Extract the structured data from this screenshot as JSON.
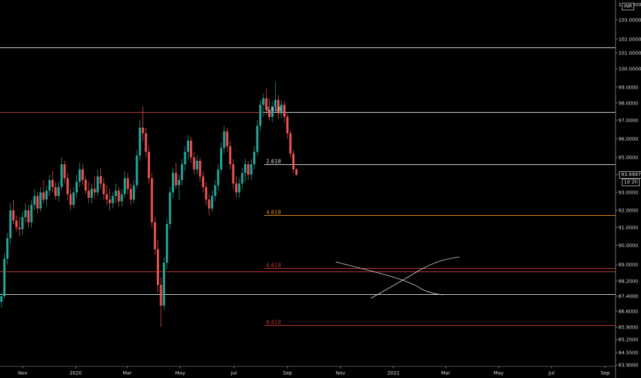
{
  "chart_data": {
    "type": "candlestick",
    "currency_badge": "INR",
    "last_price_label": "93.9997",
    "countdown_label": "1d 2h",
    "colors": {
      "up": "#26a69a",
      "down": "#ef5350",
      "white_line": "#d9d9d9",
      "red_line": "#c0392b",
      "orange_line": "#e08e0b"
    },
    "y_ticks": [
      "103.0000",
      "102.0000",
      "101.0000",
      "100.0000",
      "99.0000",
      "98.0000",
      "97.0000",
      "96.0000",
      "95.0000",
      "94.0000",
      "93.0000",
      "92.0000",
      "91.0000",
      "90.0000",
      "89.0000",
      "88.2000",
      "87.4000",
      "86.6000",
      "85.9000",
      "85.2000",
      "84.5500",
      "83.9000"
    ],
    "y_tick_top_partial": "104.0000",
    "x_ticks": [
      "Nov",
      "2020",
      "Mar",
      "May",
      "Jul",
      "Sep",
      "Nov",
      "2021",
      "Mar",
      "May",
      "Jul",
      "Sep"
    ],
    "levels": [
      {
        "name": "level-101-4",
        "price": 101.4,
        "color": "white",
        "label": ""
      },
      {
        "name": "level-97-5-red",
        "price": 97.5,
        "color": "red",
        "label": ""
      },
      {
        "name": "level-97-5-white",
        "price": 97.5,
        "color": "white",
        "label": "0.618"
      },
      {
        "name": "level-94-6",
        "price": 94.6,
        "color": "white",
        "label": "2.618"
      },
      {
        "name": "level-91-7",
        "price": 91.7,
        "color": "orange",
        "label": "4.618"
      },
      {
        "name": "level-88-85",
        "price": 88.85,
        "color": "red",
        "label": "6.618"
      },
      {
        "name": "level-88-65",
        "price": 88.65,
        "color": "red",
        "label": ""
      },
      {
        "name": "level-87-5",
        "price": 87.5,
        "color": "white",
        "label": ""
      },
      {
        "name": "level-86-0",
        "price": 86.0,
        "color": "red",
        "label": "8.618"
      }
    ],
    "candles": [
      {
        "o": 87.1,
        "h": 87.6,
        "l": 86.8,
        "c": 87.4
      },
      {
        "o": 87.4,
        "h": 89.6,
        "l": 87.3,
        "c": 89.3
      },
      {
        "o": 89.3,
        "h": 90.7,
        "l": 89.0,
        "c": 90.4
      },
      {
        "o": 90.4,
        "h": 92.4,
        "l": 90.1,
        "c": 92.0
      },
      {
        "o": 92.0,
        "h": 92.6,
        "l": 91.2,
        "c": 91.4
      },
      {
        "o": 91.4,
        "h": 91.7,
        "l": 90.8,
        "c": 91.0
      },
      {
        "o": 91.0,
        "h": 91.6,
        "l": 90.5,
        "c": 90.9
      },
      {
        "o": 90.9,
        "h": 91.9,
        "l": 90.6,
        "c": 91.6
      },
      {
        "o": 91.6,
        "h": 92.4,
        "l": 91.3,
        "c": 92.0
      },
      {
        "o": 92.0,
        "h": 92.3,
        "l": 91.0,
        "c": 91.3
      },
      {
        "o": 91.3,
        "h": 92.6,
        "l": 91.0,
        "c": 92.3
      },
      {
        "o": 92.3,
        "h": 93.2,
        "l": 92.0,
        "c": 92.8
      },
      {
        "o": 92.8,
        "h": 93.0,
        "l": 91.8,
        "c": 92.1
      },
      {
        "o": 92.1,
        "h": 93.3,
        "l": 91.9,
        "c": 93.0
      },
      {
        "o": 93.0,
        "h": 93.7,
        "l": 92.4,
        "c": 92.6
      },
      {
        "o": 92.6,
        "h": 93.4,
        "l": 92.2,
        "c": 93.1
      },
      {
        "o": 93.1,
        "h": 94.0,
        "l": 92.8,
        "c": 93.7
      },
      {
        "o": 93.7,
        "h": 94.2,
        "l": 93.0,
        "c": 93.3
      },
      {
        "o": 93.3,
        "h": 93.6,
        "l": 92.6,
        "c": 92.8
      },
      {
        "o": 92.8,
        "h": 93.6,
        "l": 92.5,
        "c": 93.3
      },
      {
        "o": 93.3,
        "h": 95.0,
        "l": 93.1,
        "c": 94.6
      },
      {
        "o": 94.6,
        "h": 94.8,
        "l": 93.5,
        "c": 93.8
      },
      {
        "o": 93.8,
        "h": 94.1,
        "l": 92.6,
        "c": 92.9
      },
      {
        "o": 92.9,
        "h": 93.2,
        "l": 92.0,
        "c": 92.3
      },
      {
        "o": 92.3,
        "h": 93.3,
        "l": 92.1,
        "c": 93.0
      },
      {
        "o": 93.0,
        "h": 94.0,
        "l": 92.7,
        "c": 93.6
      },
      {
        "o": 93.6,
        "h": 94.7,
        "l": 93.3,
        "c": 94.3
      },
      {
        "o": 94.3,
        "h": 94.6,
        "l": 93.4,
        "c": 93.7
      },
      {
        "o": 93.7,
        "h": 93.9,
        "l": 92.9,
        "c": 93.1
      },
      {
        "o": 93.1,
        "h": 93.6,
        "l": 92.4,
        "c": 92.7
      },
      {
        "o": 92.7,
        "h": 93.5,
        "l": 92.4,
        "c": 93.2
      },
      {
        "o": 93.2,
        "h": 93.9,
        "l": 92.7,
        "c": 93.0
      },
      {
        "o": 93.0,
        "h": 94.3,
        "l": 92.8,
        "c": 93.9
      },
      {
        "o": 93.9,
        "h": 94.4,
        "l": 93.2,
        "c": 93.5
      },
      {
        "o": 93.5,
        "h": 93.8,
        "l": 92.6,
        "c": 92.9
      },
      {
        "o": 92.9,
        "h": 93.4,
        "l": 92.3,
        "c": 92.6
      },
      {
        "o": 92.6,
        "h": 93.2,
        "l": 92.0,
        "c": 92.4
      },
      {
        "o": 92.4,
        "h": 93.0,
        "l": 92.1,
        "c": 92.8
      },
      {
        "o": 92.8,
        "h": 93.5,
        "l": 92.4,
        "c": 93.1
      },
      {
        "o": 93.1,
        "h": 93.3,
        "l": 92.2,
        "c": 92.5
      },
      {
        "o": 92.5,
        "h": 93.2,
        "l": 92.2,
        "c": 92.9
      },
      {
        "o": 92.9,
        "h": 94.2,
        "l": 92.7,
        "c": 93.8
      },
      {
        "o": 93.8,
        "h": 94.1,
        "l": 92.9,
        "c": 93.2
      },
      {
        "o": 93.2,
        "h": 93.5,
        "l": 92.3,
        "c": 92.6
      },
      {
        "o": 92.6,
        "h": 93.7,
        "l": 92.4,
        "c": 93.4
      },
      {
        "o": 93.4,
        "h": 95.4,
        "l": 93.2,
        "c": 95.1
      },
      {
        "o": 95.1,
        "h": 97.0,
        "l": 94.8,
        "c": 96.6
      },
      {
        "o": 96.6,
        "h": 97.8,
        "l": 95.9,
        "c": 96.3
      },
      {
        "o": 96.3,
        "h": 96.6,
        "l": 95.0,
        "c": 95.3
      },
      {
        "o": 95.3,
        "h": 95.6,
        "l": 93.5,
        "c": 93.8
      },
      {
        "o": 93.8,
        "h": 94.1,
        "l": 91.0,
        "c": 91.3
      },
      {
        "o": 91.3,
        "h": 91.6,
        "l": 89.5,
        "c": 89.8
      },
      {
        "o": 89.8,
        "h": 90.3,
        "l": 87.6,
        "c": 88.0
      },
      {
        "o": 88.0,
        "h": 88.4,
        "l": 85.9,
        "c": 86.9
      },
      {
        "o": 86.9,
        "h": 89.4,
        "l": 86.7,
        "c": 89.1
      },
      {
        "o": 89.1,
        "h": 91.5,
        "l": 88.8,
        "c": 91.2
      },
      {
        "o": 91.2,
        "h": 93.3,
        "l": 90.9,
        "c": 93.0
      },
      {
        "o": 93.0,
        "h": 94.4,
        "l": 92.7,
        "c": 94.1
      },
      {
        "o": 94.1,
        "h": 94.7,
        "l": 93.2,
        "c": 93.4
      },
      {
        "o": 93.4,
        "h": 94.0,
        "l": 92.6,
        "c": 93.7
      },
      {
        "o": 93.7,
        "h": 94.9,
        "l": 93.4,
        "c": 94.6
      },
      {
        "o": 94.6,
        "h": 95.6,
        "l": 94.2,
        "c": 95.3
      },
      {
        "o": 95.3,
        "h": 96.2,
        "l": 94.9,
        "c": 95.9
      },
      {
        "o": 95.9,
        "h": 96.1,
        "l": 94.7,
        "c": 95.0
      },
      {
        "o": 95.0,
        "h": 95.3,
        "l": 94.0,
        "c": 94.3
      },
      {
        "o": 94.3,
        "h": 95.1,
        "l": 94.0,
        "c": 94.8
      },
      {
        "o": 94.8,
        "h": 95.0,
        "l": 93.6,
        "c": 93.9
      },
      {
        "o": 93.9,
        "h": 94.2,
        "l": 93.0,
        "c": 93.3
      },
      {
        "o": 93.3,
        "h": 93.6,
        "l": 92.3,
        "c": 92.6
      },
      {
        "o": 92.6,
        "h": 92.9,
        "l": 91.7,
        "c": 92.1
      },
      {
        "o": 92.1,
        "h": 93.1,
        "l": 91.9,
        "c": 92.8
      },
      {
        "o": 92.8,
        "h": 93.7,
        "l": 92.5,
        "c": 93.4
      },
      {
        "o": 93.4,
        "h": 94.6,
        "l": 93.1,
        "c": 94.3
      },
      {
        "o": 94.3,
        "h": 95.8,
        "l": 94.1,
        "c": 95.5
      },
      {
        "o": 95.5,
        "h": 96.7,
        "l": 95.2,
        "c": 96.4
      },
      {
        "o": 96.4,
        "h": 96.6,
        "l": 95.3,
        "c": 95.6
      },
      {
        "o": 95.6,
        "h": 95.9,
        "l": 94.3,
        "c": 94.6
      },
      {
        "o": 94.6,
        "h": 94.9,
        "l": 93.2,
        "c": 93.5
      },
      {
        "o": 93.5,
        "h": 93.9,
        "l": 92.7,
        "c": 93.0
      },
      {
        "o": 93.0,
        "h": 93.8,
        "l": 92.7,
        "c": 93.5
      },
      {
        "o": 93.5,
        "h": 94.4,
        "l": 93.2,
        "c": 94.1
      },
      {
        "o": 94.1,
        "h": 94.9,
        "l": 93.6,
        "c": 94.6
      },
      {
        "o": 94.6,
        "h": 94.8,
        "l": 93.7,
        "c": 94.0
      },
      {
        "o": 94.0,
        "h": 94.9,
        "l": 93.7,
        "c": 94.6
      },
      {
        "o": 94.6,
        "h": 95.6,
        "l": 94.3,
        "c": 95.3
      },
      {
        "o": 95.3,
        "h": 97.0,
        "l": 95.1,
        "c": 96.7
      },
      {
        "o": 96.7,
        "h": 98.2,
        "l": 96.4,
        "c": 97.9
      },
      {
        "o": 97.9,
        "h": 98.6,
        "l": 97.2,
        "c": 98.3
      },
      {
        "o": 98.3,
        "h": 98.9,
        "l": 97.3,
        "c": 97.6
      },
      {
        "o": 97.6,
        "h": 98.3,
        "l": 97.0,
        "c": 97.2
      },
      {
        "o": 97.2,
        "h": 98.1,
        "l": 96.9,
        "c": 97.8
      },
      {
        "o": 97.8,
        "h": 99.3,
        "l": 97.5,
        "c": 98.2
      },
      {
        "o": 98.2,
        "h": 98.5,
        "l": 97.1,
        "c": 97.4
      },
      {
        "o": 97.4,
        "h": 98.2,
        "l": 97.1,
        "c": 97.9
      },
      {
        "o": 97.9,
        "h": 98.1,
        "l": 96.9,
        "c": 97.2
      },
      {
        "o": 97.2,
        "h": 97.4,
        "l": 96.0,
        "c": 96.3
      },
      {
        "o": 96.3,
        "h": 96.5,
        "l": 95.0,
        "c": 95.2
      },
      {
        "o": 95.2,
        "h": 95.4,
        "l": 94.1,
        "c": 94.3
      },
      {
        "o": 94.3,
        "h": 94.4,
        "l": 93.9,
        "c": 94.0
      }
    ]
  }
}
